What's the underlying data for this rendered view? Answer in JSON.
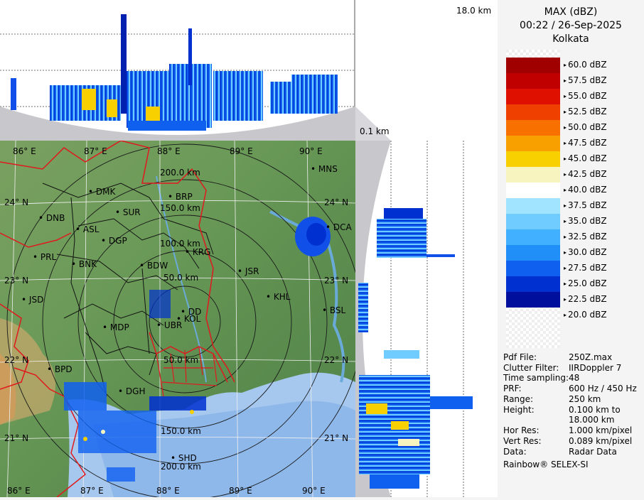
{
  "header": {
    "product": "MAX (dBZ)",
    "datetime": "00:22 / 26-Sep-2025",
    "station": "Kolkata"
  },
  "legend": {
    "levels": [
      {
        "label": "60.0 dBZ",
        "color": "#ffffff"
      },
      {
        "label": "57.5 dBZ",
        "color": "#a00000"
      },
      {
        "label": "55.0 dBZ",
        "color": "#c00000"
      },
      {
        "label": "52.5 dBZ",
        "color": "#e01000"
      },
      {
        "label": "50.0 dBZ",
        "color": "#f04000"
      },
      {
        "label": "47.5 dBZ",
        "color": "#f87000"
      },
      {
        "label": "45.0 dBZ",
        "color": "#f8a000"
      },
      {
        "label": "42.5 dBZ",
        "color": "#f8d000"
      },
      {
        "label": "40.0 dBZ",
        "color": "#f8f4c0"
      },
      {
        "label": "37.5 dBZ",
        "color": "#ffffff"
      },
      {
        "label": "35.0 dBZ",
        "color": "#a0e4ff"
      },
      {
        "label": "32.5 dBZ",
        "color": "#70ccff"
      },
      {
        "label": "30.0 dBZ",
        "color": "#40b0ff"
      },
      {
        "label": "27.5 dBZ",
        "color": "#2090f8"
      },
      {
        "label": "25.0 dBZ",
        "color": "#1060f0"
      },
      {
        "label": "22.5 dBZ",
        "color": "#0030d0"
      },
      {
        "label": "20.0 dBZ",
        "color": "#00109c"
      }
    ]
  },
  "metadata": [
    {
      "key": "Pdf File:",
      "value": "250Z.max"
    },
    {
      "key": "Clutter Filter:",
      "value": "IIRDoppler 7"
    },
    {
      "key": "Time sampling:",
      "value": "48"
    },
    {
      "key": "PRF:",
      "value": "600 Hz / 450 Hz"
    },
    {
      "key": "Range:",
      "value": "250 km"
    },
    {
      "key": "Height:",
      "value": "0.100 km to"
    },
    {
      "key": "",
      "value": "18.000 km"
    },
    {
      "key": "Hor Res:",
      "value": "1.000 km/pixel"
    },
    {
      "key": "Vert Res:",
      "value": "0.089 km/pixel"
    },
    {
      "key": "Data:",
      "value": "Radar Data"
    }
  ],
  "footer": "Rainbow® SELEX-SI",
  "height_labels": {
    "top": "18.0 km",
    "bottom": "0.1 km"
  },
  "map": {
    "lon_ticks_top": [
      "86° E",
      "87° E",
      "88° E",
      "89° E",
      "90° E"
    ],
    "lon_ticks_bottom": [
      "86° E",
      "87° E",
      "88° E",
      "89° E",
      "90° E"
    ],
    "lat_ticks": [
      "24° N",
      "23° N",
      "22° N",
      "21° N"
    ],
    "range_rings": [
      "50.0 km",
      "100.0 km",
      "150.0 km",
      "200.0 km"
    ],
    "range_rings_south": [
      "50.0 km",
      "150.0 km",
      "200.0 km"
    ],
    "places": [
      "MNS",
      "DMK",
      "BRP",
      "DNB",
      "SUR",
      "ASL",
      "DGP",
      "DCA",
      "KRG",
      "PRL",
      "BNK",
      "BDW",
      "JSR",
      "KHL",
      "JSD",
      "DD",
      "KOL",
      "BSL",
      "MDP",
      "UBR",
      "BPD",
      "DGH",
      "SHD"
    ]
  }
}
